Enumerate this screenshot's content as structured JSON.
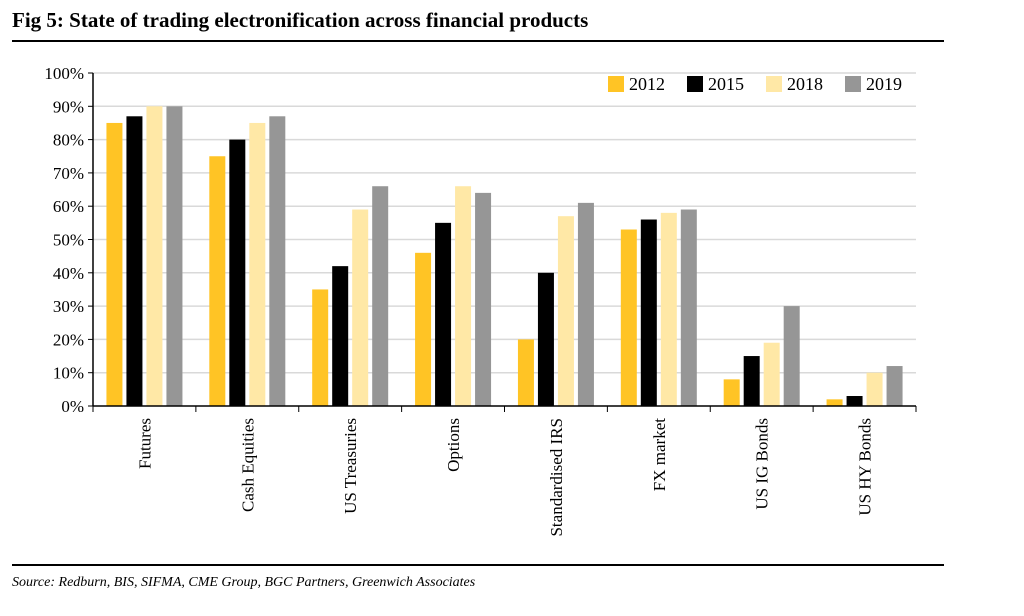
{
  "figure": {
    "title": "Fig 5: State of trading electronification across financial products",
    "source": "Source: Redburn, BIS, SIFMA, CME Group, BGC Partners, Greenwich Associates"
  },
  "chart_data": {
    "type": "bar",
    "title": "",
    "xlabel": "",
    "ylabel": "",
    "ylim": [
      0,
      100
    ],
    "yticks": [
      "0%",
      "10%",
      "20%",
      "30%",
      "40%",
      "50%",
      "60%",
      "70%",
      "80%",
      "90%",
      "100%"
    ],
    "grid": true,
    "legend_position": "top-right",
    "categories": [
      "Futures",
      "Cash Equities",
      "US Treasuries",
      "Options",
      "Standardised IRS",
      "FX market",
      "US IG Bonds",
      "US HY Bonds"
    ],
    "series": [
      {
        "name": "2012",
        "color": "#FFC425",
        "values": [
          85,
          75,
          35,
          46,
          20,
          53,
          8,
          2
        ]
      },
      {
        "name": "2015",
        "color": "#000000",
        "values": [
          87,
          80,
          42,
          55,
          40,
          56,
          15,
          3
        ]
      },
      {
        "name": "2018",
        "color": "#FFE8A6",
        "values": [
          90,
          85,
          59,
          66,
          57,
          58,
          19,
          10
        ]
      },
      {
        "name": "2019",
        "color": "#969696",
        "values": [
          90,
          87,
          66,
          64,
          61,
          59,
          30,
          12
        ]
      }
    ]
  }
}
